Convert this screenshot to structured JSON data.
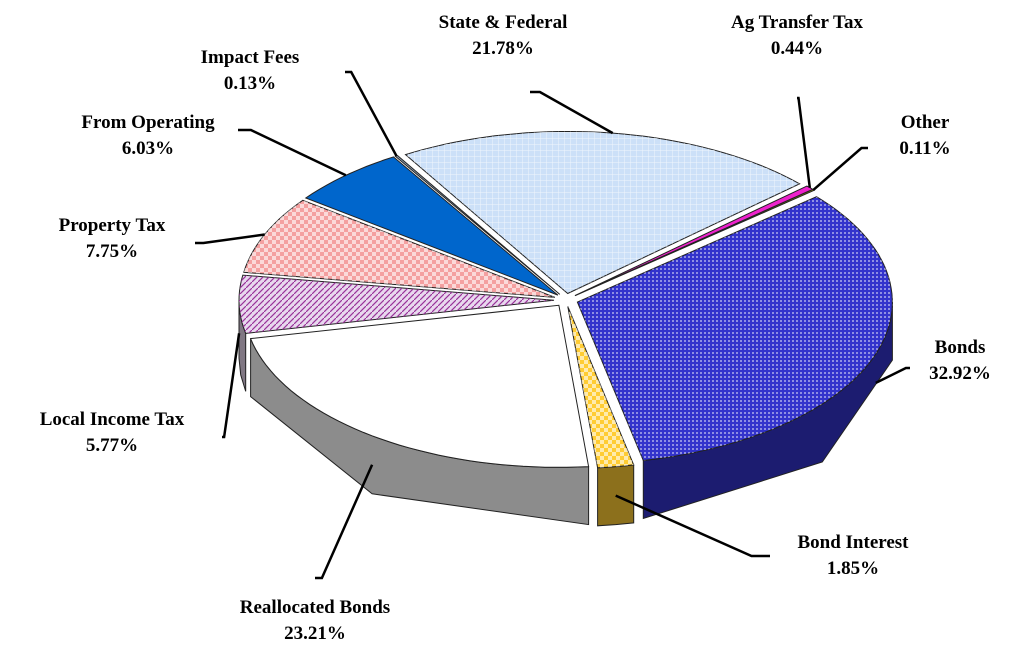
{
  "chart_data": {
    "type": "pie3d",
    "categories": [
      "Other",
      "Bonds",
      "Bond Interest",
      "Reallocated Bonds",
      "Local Income Tax",
      "Property Tax",
      "From Operating",
      "Impact Fees",
      "State & Federal",
      "Ag Transfer Tax"
    ],
    "values": [
      0.11,
      32.92,
      1.85,
      23.21,
      5.77,
      7.75,
      6.03,
      0.13,
      21.78,
      0.44
    ],
    "value_labels": [
      "0.11%",
      "32.92%",
      "1.85%",
      "23.21%",
      "5.77%",
      "7.75%",
      "6.03%",
      "0.13%",
      "21.78%",
      "0.44%"
    ],
    "colors": [
      "#999900",
      "#3333cc",
      "#ffcc33",
      "#ffffff",
      "#e8d8ee",
      "#f4a0a0",
      "#0066cc",
      "#8899aa",
      "#cce0f8",
      "#ee22cc"
    ]
  }
}
